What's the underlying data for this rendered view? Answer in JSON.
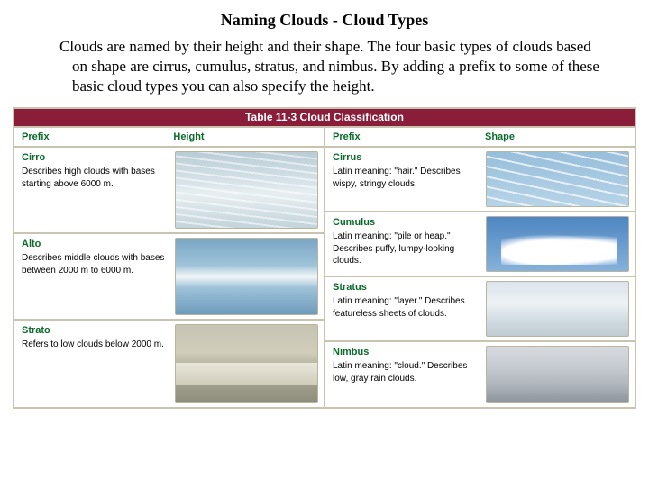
{
  "title": "Naming Clouds - Cloud Types",
  "body": "Clouds are named by their height and their shape. The four basic types of clouds based on shape are cirrus, cumulus, stratus, and nimbus. By adding a prefix to some of these basic cloud types you can also specify the height.",
  "table": {
    "header": "Table 11-3 Cloud Classification",
    "left": {
      "prefix_label": "Prefix",
      "col_label": "Height",
      "rows": [
        {
          "name": "Cirro",
          "desc": "Describes high clouds with bases starting above 6000 m."
        },
        {
          "name": "Alto",
          "desc": "Describes middle clouds with bases between 2000 m to 6000 m."
        },
        {
          "name": "Strato",
          "desc": "Refers to low clouds below 2000 m."
        }
      ]
    },
    "right": {
      "prefix_label": "Prefix",
      "col_label": "Shape",
      "rows": [
        {
          "name": "Cirrus",
          "desc": "Latin meaning: \"hair.\" Describes wispy, stringy clouds."
        },
        {
          "name": "Cumulus",
          "desc": "Latin meaning: \"pile or heap.\" Describes puffy, lumpy-looking clouds."
        },
        {
          "name": "Stratus",
          "desc": "Latin meaning: \"layer.\" Describes featureless sheets of clouds."
        },
        {
          "name": "Nimbus",
          "desc": "Latin meaning: \"cloud.\" Describes low, gray rain clouds."
        }
      ]
    }
  },
  "colors": {
    "header_bg": "#8a1d3a",
    "border": "#c8c4b0",
    "green": "#0a6b2b"
  }
}
